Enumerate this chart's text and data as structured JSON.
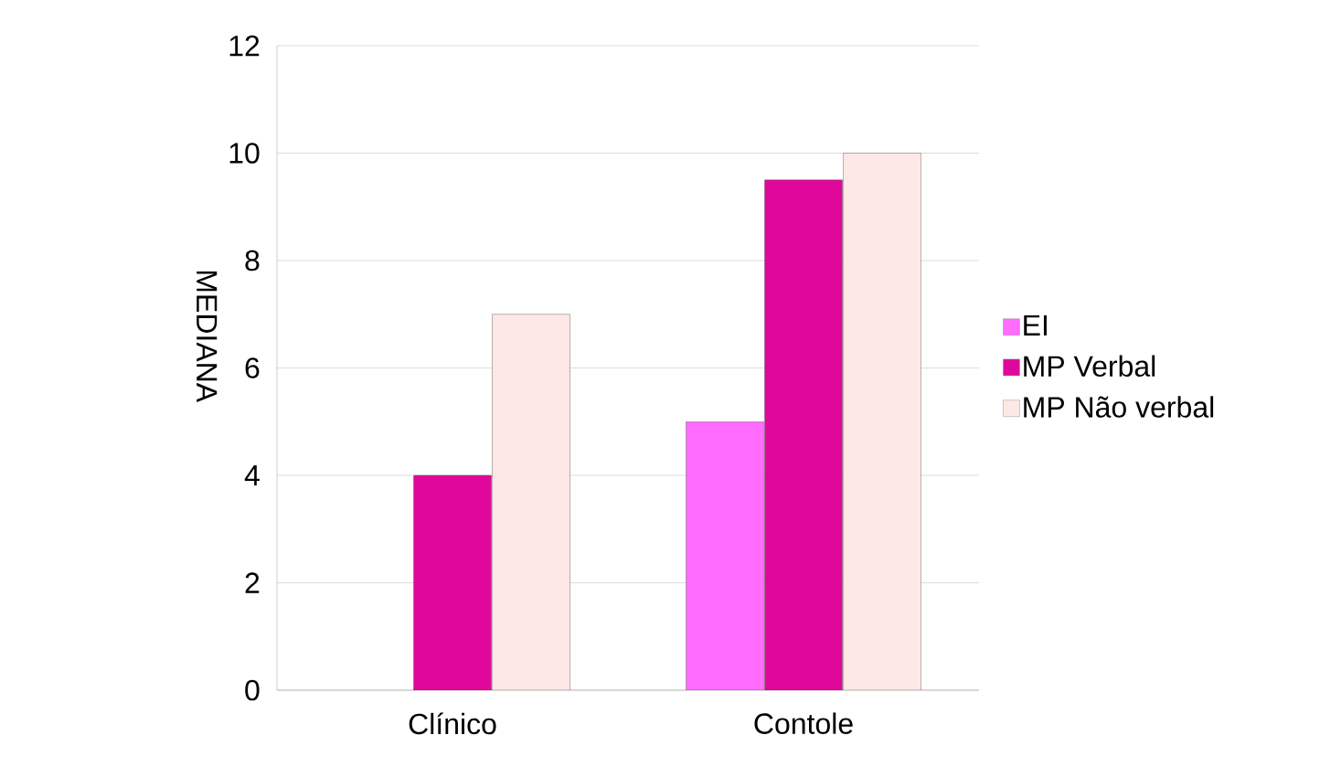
{
  "chart_data": {
    "type": "bar",
    "ylabel": "MEDIANA",
    "categories": [
      "Clínico",
      "Contole"
    ],
    "series": [
      {
        "name": "EI",
        "color": "#ff6cff",
        "values": [
          null,
          5
        ]
      },
      {
        "name": "MP Verbal",
        "color": "#e0089a",
        "values": [
          4,
          9.5
        ]
      },
      {
        "name": "MP Não verbal",
        "color": "#fde8e6",
        "values": [
          7,
          10
        ]
      }
    ],
    "ylim": [
      0,
      12
    ],
    "yticks": [
      0,
      2,
      4,
      6,
      8,
      10,
      12
    ],
    "grid": "y",
    "legend": "right"
  }
}
